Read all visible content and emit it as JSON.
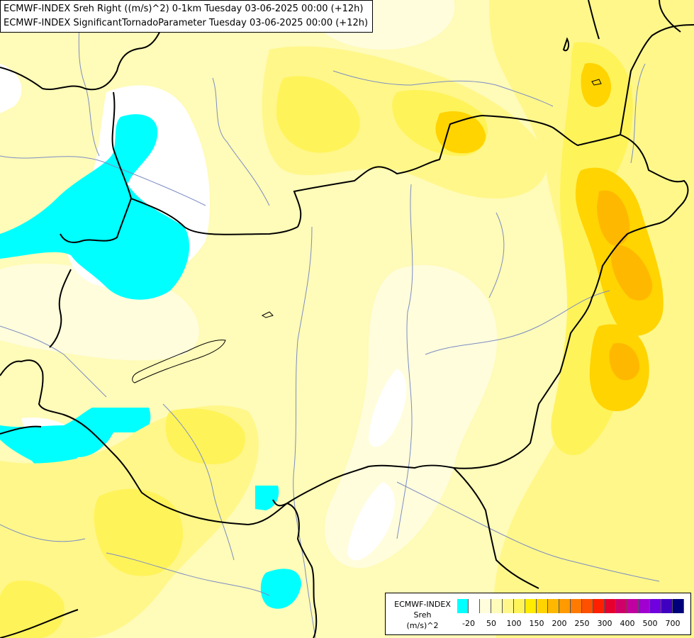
{
  "header": {
    "line1": "ECMWF-INDEX Sreh Right ((m/s)^2) 0-1km Tuesday 03-06-2025 00:00 (+12h)",
    "line2": "ECMWF-INDEX SignificantTornadoParameter Tuesday 03-06-2025 00:00 (+12h)"
  },
  "legend": {
    "line1": "ECMWF-INDEX",
    "line2": "Sreh",
    "line3": "(m/s)^2",
    "colors": [
      "#00ffff",
      "#ffffff",
      "#fffddc",
      "#fffbb8",
      "#fff78a",
      "#fff35a",
      "#ffec00",
      "#ffd400",
      "#ffb800",
      "#ff9a00",
      "#ff7a00",
      "#ff5000",
      "#ff2000",
      "#e60030",
      "#d0006a",
      "#c000a0",
      "#a000d0",
      "#7000e0",
      "#4000c0",
      "#00007a"
    ],
    "ticks": [
      "-20",
      "50",
      "100",
      "150",
      "200",
      "250",
      "300",
      "400",
      "500",
      "700"
    ]
  }
}
